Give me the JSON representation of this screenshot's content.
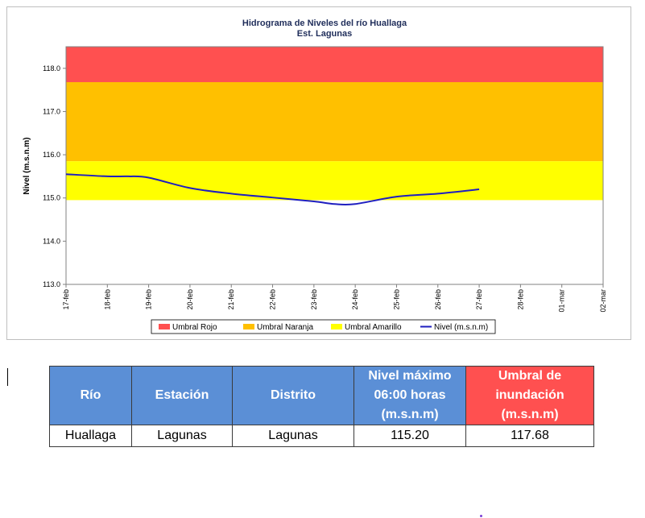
{
  "chart_data": {
    "type": "line",
    "title": "Hidrograma de Niveles del río Huallaga",
    "subtitle": "Est. Lagunas",
    "ylabel": "Nivel (m.s.n.m)",
    "xlabel": "",
    "ylim": [
      113.0,
      118.5
    ],
    "yticks": [
      "113.0",
      "114.0",
      "115.0",
      "116.0",
      "117.0",
      "118.0"
    ],
    "categories": [
      "17-feb",
      "18-feb",
      "19-feb",
      "20-feb",
      "21-feb",
      "22-feb",
      "23-feb",
      "24-feb",
      "25-feb",
      "26-feb",
      "27-feb",
      "28-feb",
      "01-mar",
      "02-mar"
    ],
    "bands": [
      {
        "name": "Umbral Rojo",
        "from": 117.68,
        "to": 118.5,
        "color": "#ff5050"
      },
      {
        "name": "Umbral Naranja",
        "from": 115.85,
        "to": 117.68,
        "color": "#ffc000"
      },
      {
        "name": "Umbral Amarillo",
        "from": 114.95,
        "to": 115.85,
        "color": "#ffff00"
      }
    ],
    "series": [
      {
        "name": "Nivel (m.s.n.m)",
        "color": "#1f1fbf",
        "x": [
          0,
          1,
          1.5,
          2,
          3,
          4,
          5,
          6,
          6.5,
          7,
          8,
          9,
          10
        ],
        "values": [
          115.55,
          115.5,
          115.5,
          115.47,
          115.23,
          115.1,
          115.01,
          114.92,
          114.86,
          114.86,
          115.03,
          115.1,
          115.2
        ]
      }
    ],
    "legend": [
      {
        "name": "Umbral Rojo",
        "kind": "box",
        "color": "#ff5050"
      },
      {
        "name": "Umbral Naranja",
        "kind": "box",
        "color": "#ffc000"
      },
      {
        "name": "Umbral Amarillo",
        "kind": "box",
        "color": "#ffff00"
      },
      {
        "name": "Nivel (m.s.n.m)",
        "kind": "line",
        "color": "#1f1fbf"
      }
    ],
    "legend_position": "bottom",
    "grid": false
  },
  "table": {
    "headers": [
      {
        "lines": [
          "Río"
        ],
        "color": "blue"
      },
      {
        "lines": [
          "Estación"
        ],
        "color": "blue"
      },
      {
        "lines": [
          "Distrito"
        ],
        "color": "blue"
      },
      {
        "lines": [
          "Nivel máximo",
          "06:00 horas",
          "(m.s.n.m)"
        ],
        "color": "blue"
      },
      {
        "lines": [
          "Umbral de",
          "inundación",
          "(m.s.n.m)"
        ],
        "color": "red"
      }
    ],
    "row": [
      "Huallaga",
      "Lagunas",
      "Lagunas",
      "115.20",
      "117.68"
    ]
  }
}
